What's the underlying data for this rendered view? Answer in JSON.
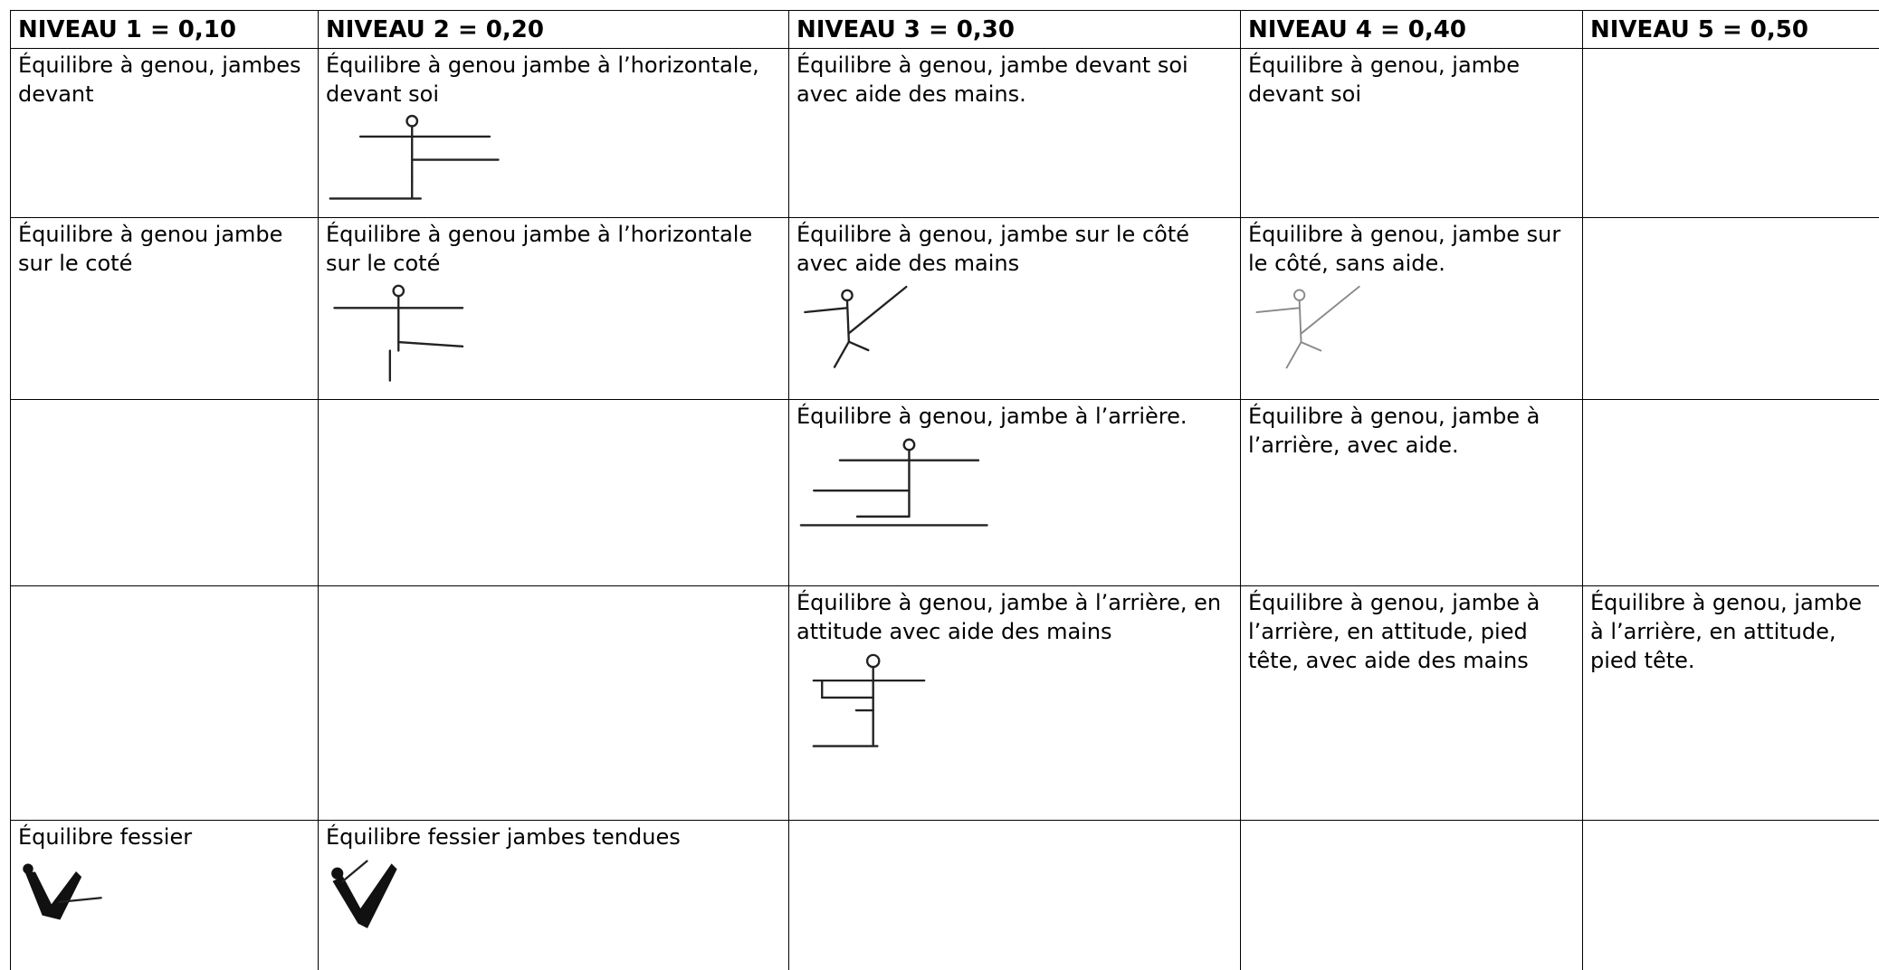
{
  "table": {
    "header": [
      "NIVEAU 1 = 0,10",
      "NIVEAU 2 = 0,20",
      "NIVEAU 3 = 0,30",
      "NIVEAU 4 = 0,40",
      "NIVEAU 5 = 0,50"
    ],
    "rows": [
      [
        "Équilibre à genou, jambes devant",
        "Équilibre à genou jambe à l’horizontale, devant soi",
        "Équilibre à genou, jambe devant soi avec aide des mains.",
        "Équilibre à genou, jambe devant soi",
        null
      ],
      [
        "Équilibre à genou jambe sur le coté",
        "Équilibre à genou jambe à l’horizontale sur le coté",
        "Équilibre à genou, jambe sur le côté avec aide des mains",
        "Équilibre à genou, jambe sur le côté, sans aide.",
        null
      ],
      [
        null,
        null,
        "Équilibre à genou, jambe à l’arrière.",
        "Équilibre à genou, jambe à l’arrière, avec aide.",
        null
      ],
      [
        null,
        null,
        "Équilibre à genou, jambe à l’arrière, en attitude avec aide des mains",
        "Équilibre à genou, jambe à l’arrière, en attitude, pied tête, avec aide des mains",
        "Équilibre à genou, jambe à l’arrière, en attitude, pied tête."
      ],
      [
        "Équilibre fessier",
        "Équilibre fessier jambes tendues",
        null,
        null,
        null
      ]
    ]
  }
}
